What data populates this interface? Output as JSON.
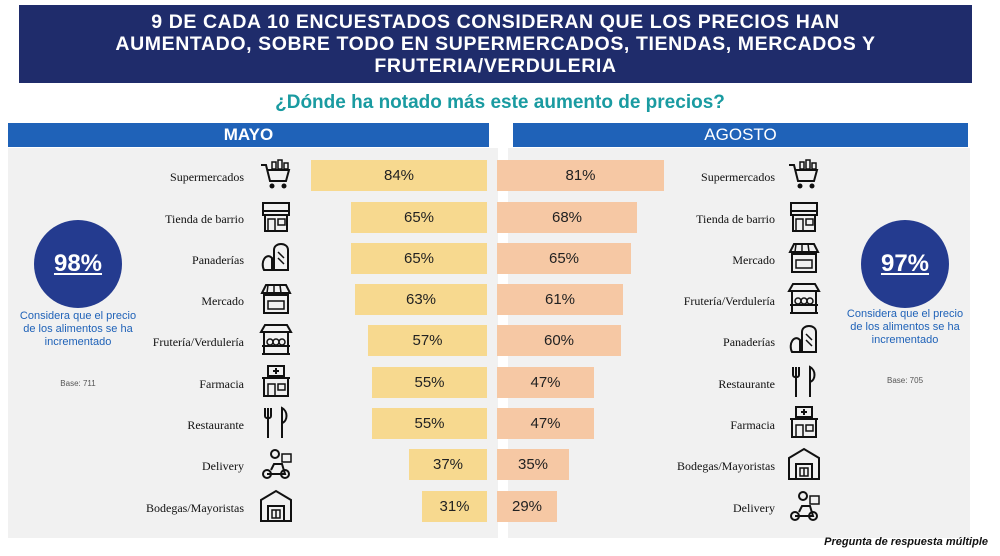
{
  "title_lines": [
    "9 DE CADA 10 ENCUESTADOS CONSIDERAN QUE LOS PRECIOS HAN",
    "AUMENTADO, SOBRE TODO EN SUPERMERCADOS, TIENDAS, MERCADOS Y",
    "FRUTERIA/VERDULERIA"
  ],
  "question": "¿Dónde ha notado más este aumento de precios?",
  "left_panel": {
    "header": "MAYO",
    "circle_value": "98%",
    "circle_note": "Considera que el precio de los alimentos se ha incrementado",
    "base": "Base: 711"
  },
  "right_panel": {
    "header": "AGOSTO",
    "circle_value": "97%",
    "circle_note": "Considera que el precio de los alimentos se ha incrementado",
    "base": "Base: 705"
  },
  "footnote": "Pregunta de respuesta múltiple",
  "colors": {
    "banner": "#1f2c6b",
    "header": "#1f62b8",
    "may_bar": "#f7d98f",
    "aug_bar": "#f6c8a4",
    "question": "#1a9ba1",
    "circle": "#243b8f"
  },
  "chart_data": [
    {
      "type": "bar",
      "orientation": "horizontal",
      "title": "MAYO",
      "categories": [
        "Supermercados",
        "Tienda de barrio",
        "Panaderías",
        "Mercado",
        "Frutería/Verdulería",
        "Farmacia",
        "Restaurante",
        "Delivery",
        "Bodegas/Mayoristas"
      ],
      "values": [
        84,
        65,
        65,
        63,
        57,
        55,
        55,
        37,
        31
      ],
      "labels": [
        "84%",
        "65%",
        "65%",
        "63%",
        "57%",
        "55%",
        "55%",
        "37%",
        "31%"
      ],
      "icons": [
        "cart-icon",
        "store-icon",
        "bread-icon",
        "market-icon",
        "fruit-stand-icon",
        "pharmacy-icon",
        "cutlery-icon",
        "delivery-icon",
        "warehouse-icon"
      ],
      "xlim": [
        0,
        100
      ]
    },
    {
      "type": "bar",
      "orientation": "horizontal",
      "title": "AGOSTO",
      "categories": [
        "Supermercados",
        "Tienda de barrio",
        "Mercado",
        "Frutería/Verdulería",
        "Panaderías",
        "Restaurante",
        "Farmacia",
        "Bodegas/Mayoristas",
        "Delivery"
      ],
      "values": [
        81,
        68,
        65,
        61,
        60,
        47,
        47,
        35,
        29
      ],
      "labels": [
        "81%",
        "68%",
        "65%",
        "61%",
        "60%",
        "47%",
        "47%",
        "35%",
        "29%"
      ],
      "icons": [
        "cart-icon",
        "store-icon",
        "market-icon",
        "fruit-stand-icon",
        "bread-icon",
        "cutlery-icon",
        "pharmacy-icon",
        "warehouse-icon",
        "delivery-icon"
      ],
      "xlim": [
        0,
        100
      ]
    }
  ]
}
